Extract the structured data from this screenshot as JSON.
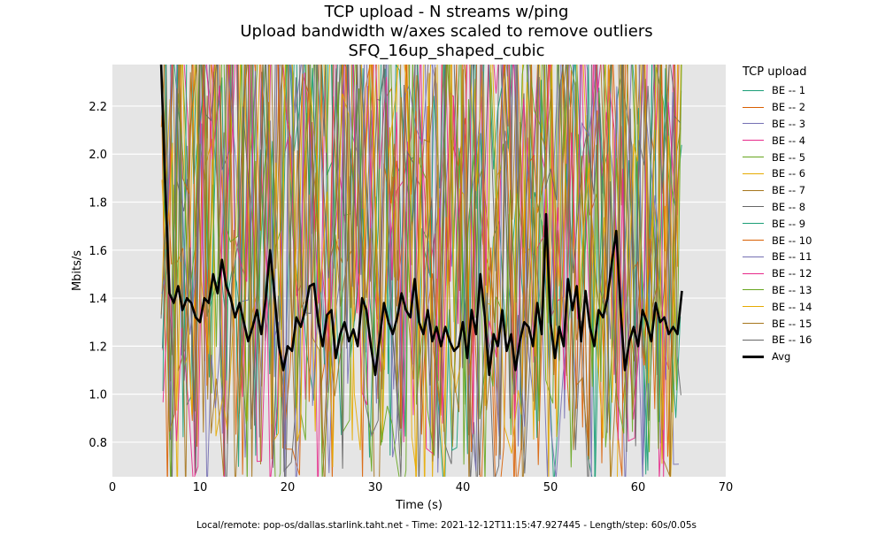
{
  "titles": {
    "line1": "TCP upload - N streams w/ping",
    "line2": "Upload bandwidth w/axes scaled to remove outliers",
    "line3": "SFQ_16up_shaped_cubic"
  },
  "footer": "Local/remote: pop-os/dallas.starlink.taht.net - Time: 2021-12-12T11:15:47.927445 - Length/step: 60s/0.05s",
  "chart_data": {
    "type": "line",
    "title": "TCP upload - N streams w/ping / Upload bandwidth w/axes scaled to remove outliers / SFQ_16up_shaped_cubic",
    "xlabel": "Time (s)",
    "ylabel": "Mbits/s",
    "xlim": [
      0,
      70
    ],
    "ylim": [
      0.656,
      2.373
    ],
    "xticks": [
      0,
      10,
      20,
      30,
      40,
      50,
      60,
      70
    ],
    "yticks": [
      0.8,
      1.0,
      1.2,
      1.4,
      1.6,
      1.8,
      2.0,
      2.2
    ],
    "ytick_labels": [
      "0.8",
      "1.0",
      "1.2",
      "1.4",
      "1.6",
      "1.8",
      "2.0",
      "2.2"
    ],
    "grid": true,
    "background": "#e5e5e5",
    "legend_title": "TCP upload",
    "legend_position": "right-outside",
    "stream_time_range": [
      5.5,
      65
    ],
    "series": [
      {
        "name": "BE -- 1",
        "color": "#1b9e77",
        "width": 1
      },
      {
        "name": "BE -- 2",
        "color": "#d95f02",
        "width": 1
      },
      {
        "name": "BE -- 3",
        "color": "#7570b3",
        "width": 1
      },
      {
        "name": "BE -- 4",
        "color": "#e7298a",
        "width": 1
      },
      {
        "name": "BE -- 5",
        "color": "#66a61e",
        "width": 1
      },
      {
        "name": "BE -- 6",
        "color": "#e6ab02",
        "width": 1
      },
      {
        "name": "BE -- 7",
        "color": "#a6761d",
        "width": 1
      },
      {
        "name": "BE -- 8",
        "color": "#666666",
        "width": 1
      },
      {
        "name": "BE -- 9",
        "color": "#1b9e77",
        "width": 1
      },
      {
        "name": "BE -- 10",
        "color": "#d95f02",
        "width": 1
      },
      {
        "name": "BE -- 11",
        "color": "#7570b3",
        "width": 1
      },
      {
        "name": "BE -- 12",
        "color": "#e7298a",
        "width": 1
      },
      {
        "name": "BE -- 13",
        "color": "#66a61e",
        "width": 1
      },
      {
        "name": "BE -- 14",
        "color": "#e6ab02",
        "width": 1
      },
      {
        "name": "BE -- 15",
        "color": "#a6761d",
        "width": 1
      },
      {
        "name": "BE -- 16",
        "color": "#666666",
        "width": 1
      },
      {
        "name": "Avg",
        "color": "#000000",
        "width": 2.6,
        "x": [
          5.5,
          6.0,
          6.5,
          7.0,
          7.5,
          8.0,
          8.5,
          9.0,
          9.5,
          10.0,
          10.5,
          11.0,
          11.5,
          12.0,
          12.5,
          13.0,
          13.5,
          14.0,
          14.5,
          15.0,
          15.5,
          16.0,
          16.5,
          17.0,
          17.5,
          18.0,
          18.5,
          19.0,
          19.5,
          20.0,
          20.5,
          21.0,
          21.5,
          22.0,
          22.5,
          23.0,
          23.5,
          24.0,
          24.5,
          25.0,
          25.5,
          26.0,
          26.5,
          27.0,
          27.5,
          28.0,
          28.5,
          29.0,
          29.5,
          30.0,
          30.5,
          31.0,
          31.5,
          32.0,
          32.5,
          33.0,
          33.5,
          34.0,
          34.5,
          35.0,
          35.5,
          36.0,
          36.5,
          37.0,
          37.5,
          38.0,
          38.5,
          39.0,
          39.5,
          40.0,
          40.5,
          41.0,
          41.5,
          42.0,
          42.5,
          43.0,
          43.5,
          44.0,
          44.5,
          45.0,
          45.5,
          46.0,
          46.5,
          47.0,
          47.5,
          48.0,
          48.5,
          49.0,
          49.5,
          50.0,
          50.5,
          51.0,
          51.5,
          52.0,
          52.5,
          53.0,
          53.5,
          54.0,
          54.5,
          55.0,
          55.5,
          56.0,
          56.5,
          57.0,
          57.5,
          58.0,
          58.5,
          59.0,
          59.5,
          60.0,
          60.5,
          61.0,
          61.5,
          62.0,
          62.5,
          63.0,
          63.5,
          64.0,
          64.5,
          65.0
        ],
        "values": [
          2.45,
          1.9,
          1.42,
          1.38,
          1.45,
          1.35,
          1.4,
          1.38,
          1.32,
          1.3,
          1.4,
          1.38,
          1.5,
          1.42,
          1.56,
          1.45,
          1.4,
          1.32,
          1.38,
          1.3,
          1.22,
          1.28,
          1.35,
          1.25,
          1.4,
          1.6,
          1.42,
          1.2,
          1.1,
          1.2,
          1.18,
          1.32,
          1.28,
          1.35,
          1.45,
          1.46,
          1.3,
          1.2,
          1.33,
          1.35,
          1.15,
          1.25,
          1.3,
          1.22,
          1.27,
          1.2,
          1.4,
          1.35,
          1.2,
          1.08,
          1.23,
          1.38,
          1.3,
          1.25,
          1.32,
          1.42,
          1.35,
          1.32,
          1.48,
          1.3,
          1.25,
          1.35,
          1.22,
          1.28,
          1.2,
          1.28,
          1.22,
          1.18,
          1.2,
          1.3,
          1.15,
          1.35,
          1.25,
          1.5,
          1.32,
          1.08,
          1.25,
          1.2,
          1.35,
          1.18,
          1.25,
          1.1,
          1.22,
          1.3,
          1.28,
          1.2,
          1.38,
          1.25,
          1.75,
          1.3,
          1.15,
          1.28,
          1.2,
          1.48,
          1.35,
          1.45,
          1.22,
          1.43,
          1.28,
          1.2,
          1.35,
          1.32,
          1.4,
          1.55,
          1.68,
          1.35,
          1.1,
          1.22,
          1.28,
          1.2,
          1.35,
          1.3,
          1.22,
          1.38,
          1.3,
          1.32,
          1.25,
          1.28,
          1.25,
          1.43
        ]
      }
    ],
    "per_stream_note": "Individual BE stream values oscillate densely between ~0.6 and >2.4 Mbits/s over 5.5-65 s; rendered as noisy traces"
  }
}
